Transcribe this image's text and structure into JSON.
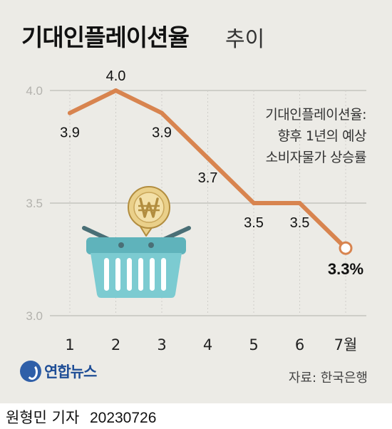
{
  "title": {
    "main": "기대인플레이션율",
    "sub": "추이"
  },
  "annotation": {
    "line1": "기대인플레이션율:",
    "line2": "향후 1년의 예상",
    "line3": "소비자물가 상승률"
  },
  "source": "자료: 한국은행",
  "logo_text": "연합뉴스",
  "byline": {
    "author": "원형민 기자",
    "date": "20230726"
  },
  "colors": {
    "background": "#ecebe6",
    "line": "#d8844f",
    "grid": "#bdbcb7",
    "basket": "#74c3c9",
    "basket_dark": "#4f8f97",
    "coin": "#ead08a",
    "coin_dark": "#b28d3f"
  },
  "icons": [
    "won-coin-icon",
    "shopping-basket-icon",
    "logo-icon"
  ],
  "chart_data": {
    "type": "line",
    "categories": [
      "1",
      "2",
      "3",
      "4",
      "5",
      "6",
      "7월"
    ],
    "values": [
      3.9,
      4.0,
      3.9,
      3.7,
      3.5,
      3.5,
      3.3
    ],
    "labels": [
      "3.9",
      "4.0",
      "3.9",
      "3.7",
      "3.5",
      "3.5",
      "3.3%"
    ],
    "yticks": [
      "4.0",
      "3.5",
      "3.0"
    ],
    "ytick_values": [
      4.0,
      3.5,
      3.0
    ],
    "ylim": [
      3.0,
      4.0
    ],
    "grid": true,
    "last_point_hollow": true
  }
}
